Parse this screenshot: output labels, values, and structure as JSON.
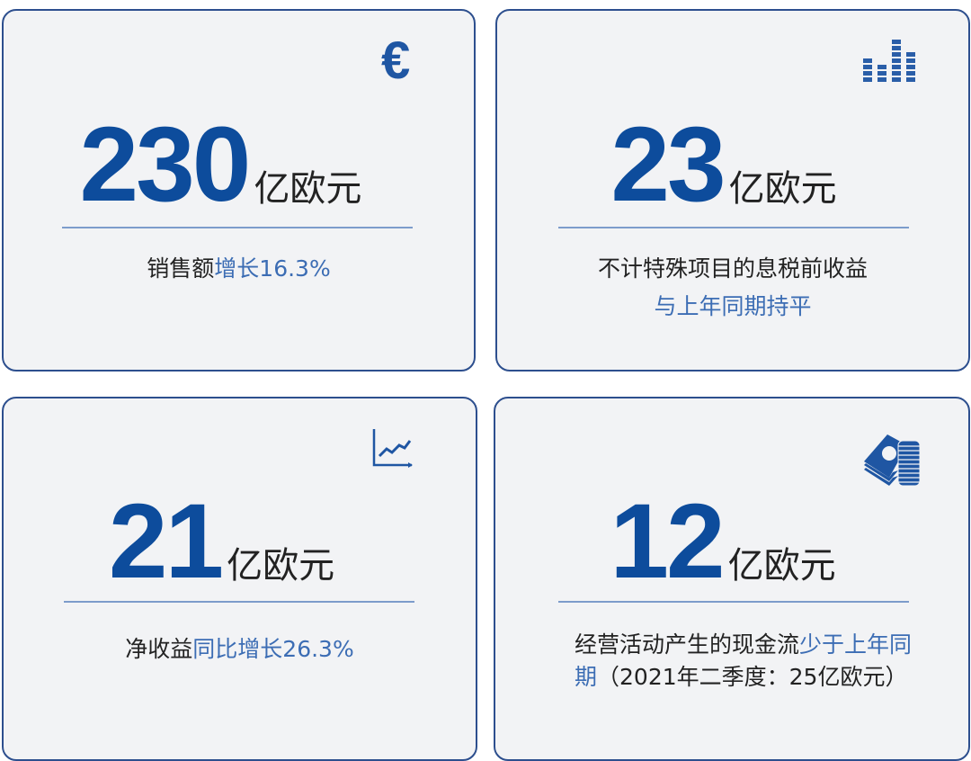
{
  "cards": [
    {
      "value": "230",
      "unit": "亿欧元",
      "icon": "euro-icon",
      "text": "销售额",
      "highlight": "增长16.3%"
    },
    {
      "value": "23",
      "unit": "亿欧元",
      "icon": "bar-level-icon",
      "text": "不计特殊项目的息税前收益",
      "highlight": "与上年同期持平"
    },
    {
      "value": "21",
      "unit": "亿欧元",
      "icon": "line-chart-icon",
      "text": "净收益",
      "highlight": "同比增长26.3%"
    },
    {
      "value": "12",
      "unit": "亿欧元",
      "icon": "money-coins-icon",
      "text": "经营活动产生的现金流",
      "highlight": "少于上年同期",
      "text2": "（2021年二季度：25亿欧元）"
    }
  ],
  "colors": {
    "accent": "#0d4c9c",
    "highlight": "#3c6db4",
    "border": "#2d4f8e",
    "card_bg": "#f2f3f5"
  }
}
